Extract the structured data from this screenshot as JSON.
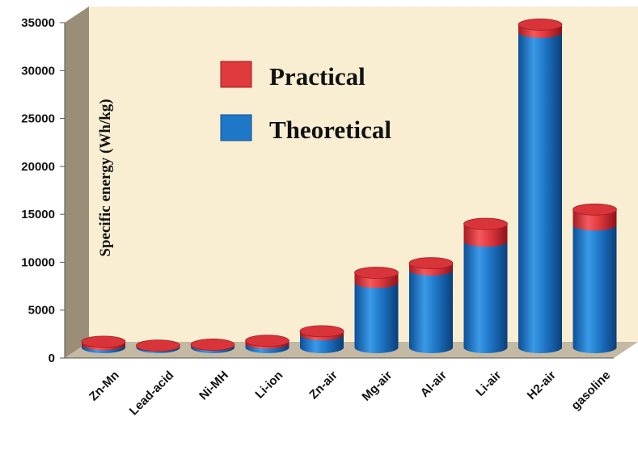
{
  "chart_data": {
    "type": "bar",
    "ylabel": "Specific energy (Wh/kg)",
    "ylim": [
      0,
      35000
    ],
    "yticks": [
      0,
      5000,
      10000,
      15000,
      20000,
      25000,
      30000,
      35000
    ],
    "categories": [
      "Zn-Mn",
      "Lead-acid",
      "Ni-MH",
      "Li-ion",
      "Zn-air",
      "Mg-air",
      "Al-air",
      "Li-air",
      "H2-air",
      "gasoline"
    ],
    "series": [
      {
        "name": "Theoretical",
        "color": "#1f77c8",
        "values": [
          300,
          170,
          240,
          450,
          1350,
          6800,
          8100,
          11100,
          32900,
          12800
        ]
      },
      {
        "name": "Practical",
        "color": "#e0393e",
        "values": [
          600,
          200,
          300,
          700,
          1700,
          7800,
          8800,
          12900,
          33700,
          14400
        ]
      }
    ],
    "legend": [
      {
        "label": "Practical",
        "color": "#e0393e"
      },
      {
        "label": "Theoretical",
        "color": "#1f77c8"
      }
    ],
    "legend_position": "top-left",
    "grid": false
  }
}
